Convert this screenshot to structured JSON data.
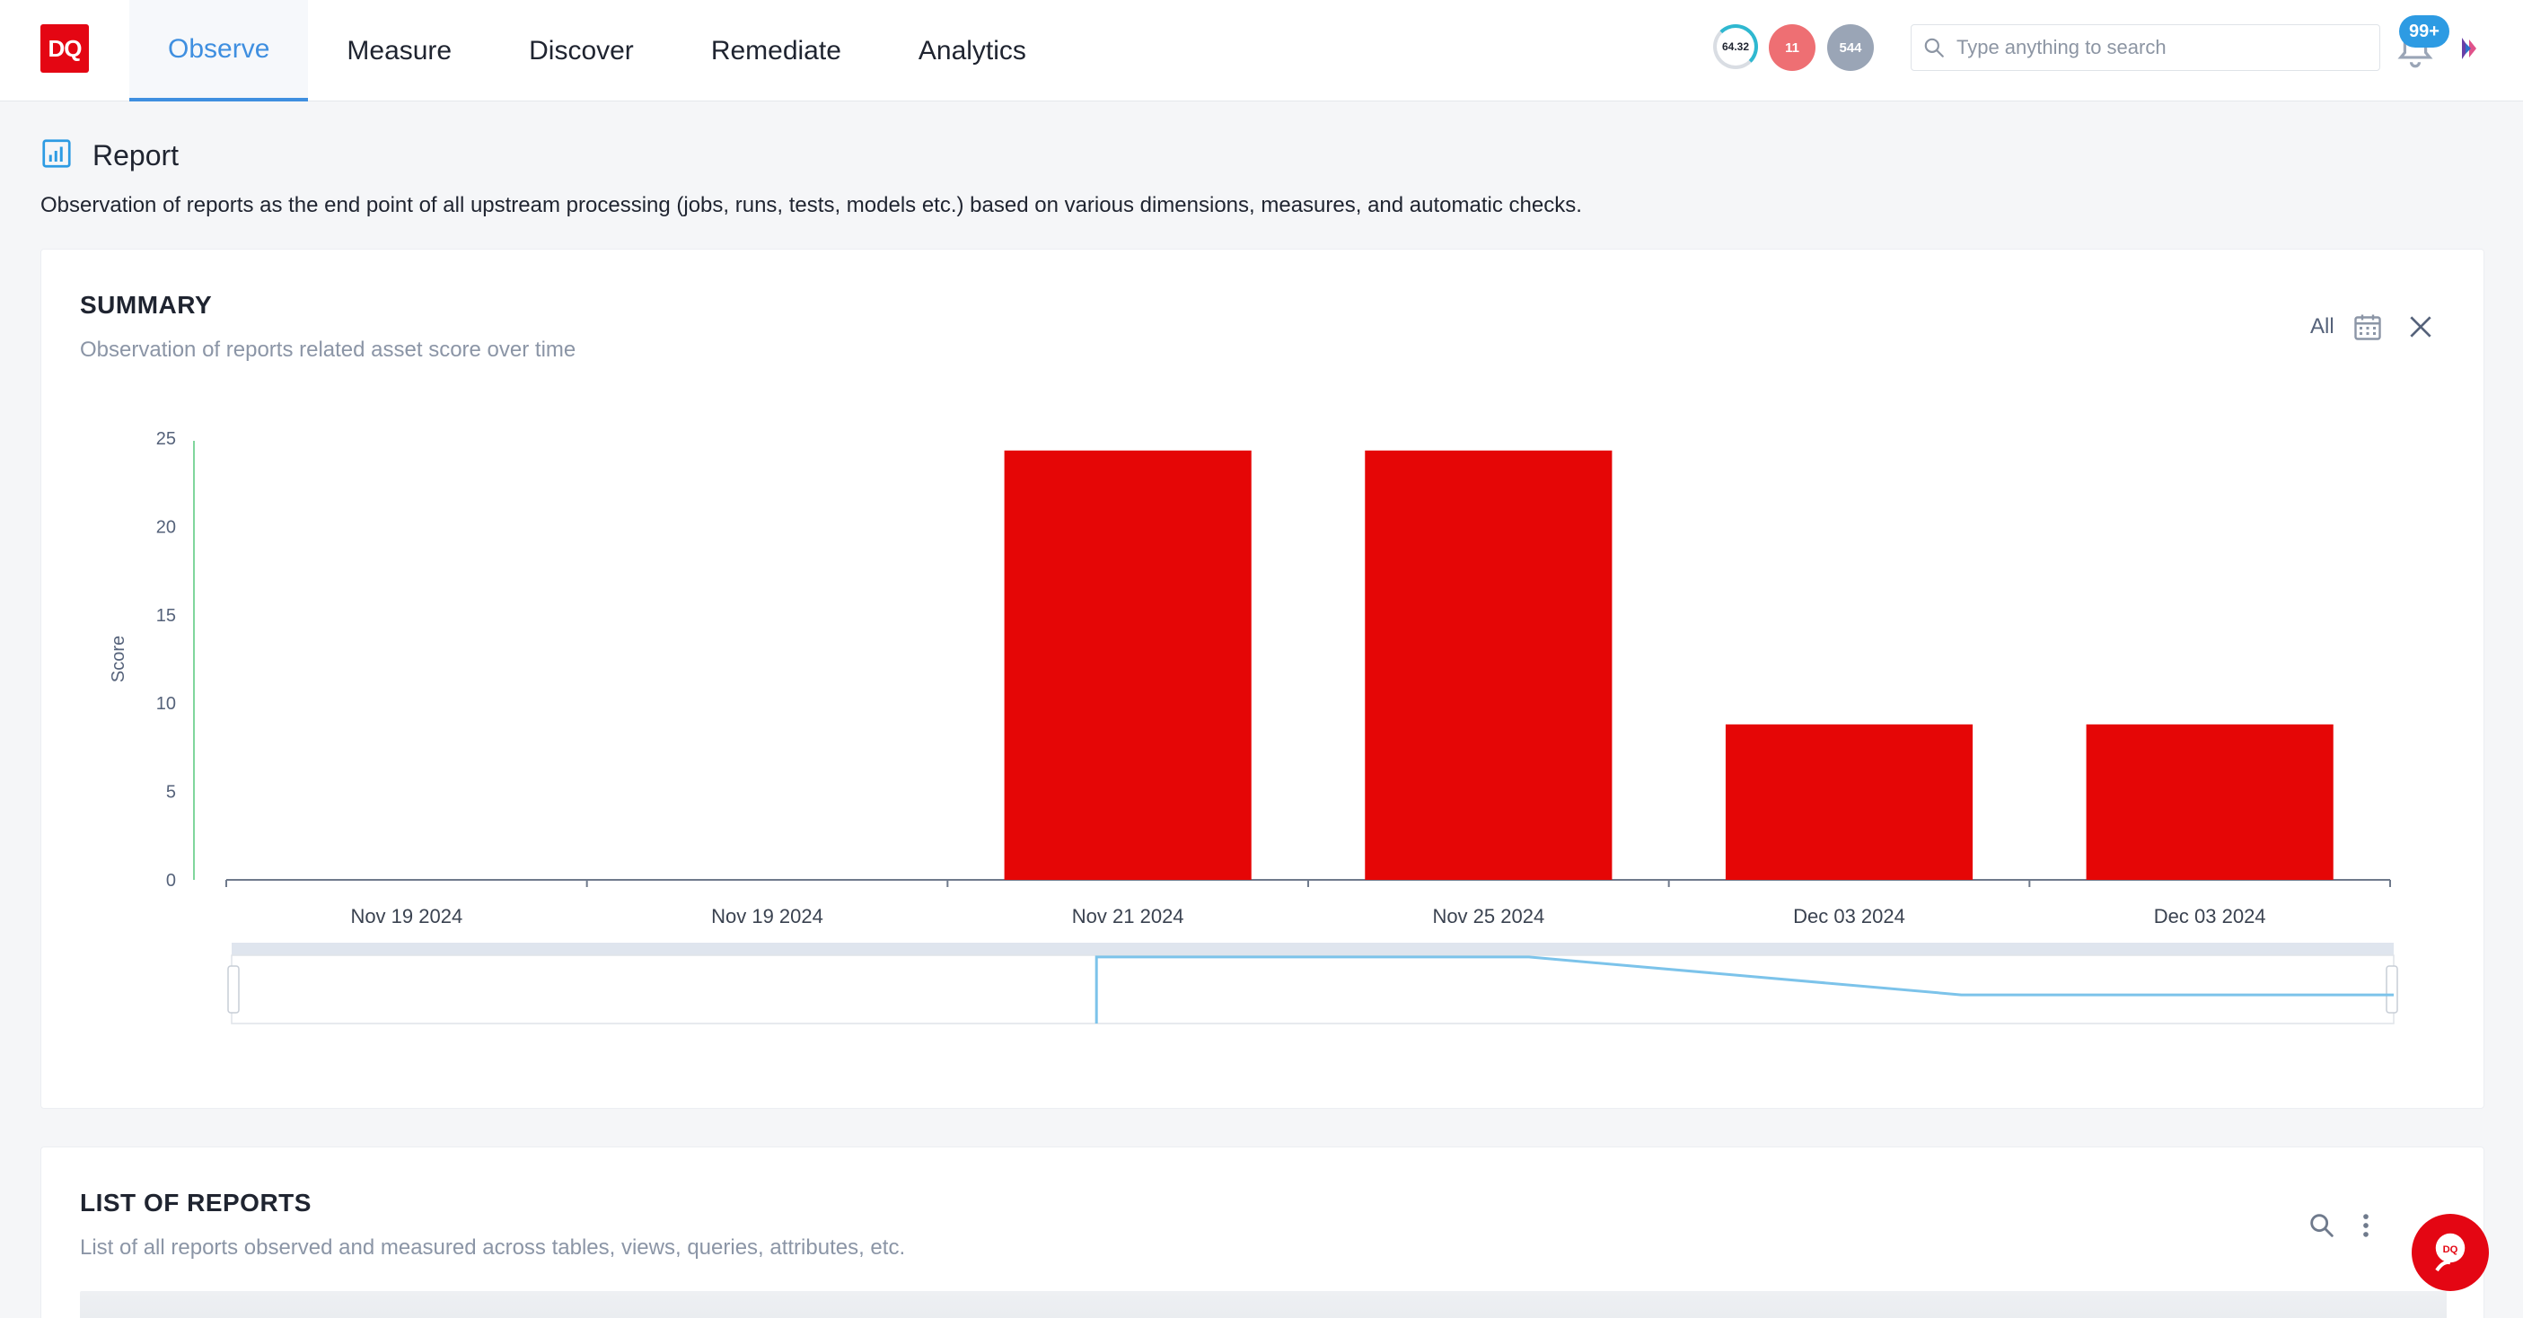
{
  "app": {
    "logo_text": "DQ"
  },
  "nav": {
    "tabs": [
      {
        "label": "Observe",
        "active": true
      },
      {
        "label": "Measure"
      },
      {
        "label": "Discover"
      },
      {
        "label": "Remediate"
      },
      {
        "label": "Analytics"
      }
    ]
  },
  "header_stats": {
    "score": "64.32",
    "alerts": "11",
    "count": "544"
  },
  "search": {
    "placeholder": "Type anything to search",
    "value": ""
  },
  "notifications": {
    "badge": "99+"
  },
  "page": {
    "title": "Report",
    "description": "Observation of reports as the end point of all upstream processing (jobs, runs, tests, models etc.) based on various dimensions, measures, and automatic checks."
  },
  "summary": {
    "title": "SUMMARY",
    "subtitle": "Observation of reports related asset score over time",
    "range_label": "All"
  },
  "chart_data": {
    "type": "bar",
    "categories": [
      "Nov 19 2024",
      "Nov 19 2024",
      "Nov 21 2024",
      "Nov 25 2024",
      "Dec 03 2024",
      "Dec 03 2024"
    ],
    "values": [
      0,
      0,
      24.3,
      24.3,
      8.8,
      8.8
    ],
    "ylabel": "Score",
    "ylim": [
      0,
      25
    ],
    "yticks": [
      0,
      5,
      10,
      15,
      20,
      25
    ],
    "bar_color": "#e50606",
    "overview_color": "#7cc3ea",
    "axis_color": "#80d69c"
  },
  "list": {
    "title": "LIST OF REPORTS",
    "subtitle": "List of all reports observed and measured across tables, views, queries, attributes, etc."
  },
  "colors": {
    "accent": "#3f8fe0",
    "brand": "#e40613"
  }
}
